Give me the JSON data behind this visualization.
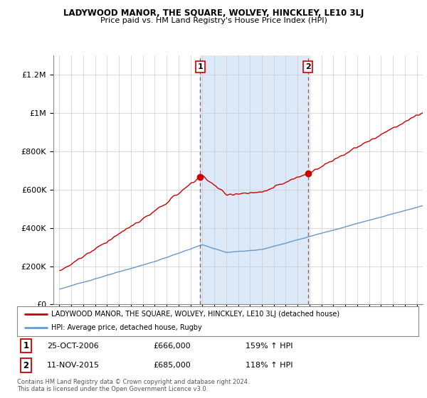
{
  "title": "LADYWOOD MANOR, THE SQUARE, WOLVEY, HINCKLEY, LE10 3LJ",
  "subtitle": "Price paid vs. HM Land Registry's House Price Index (HPI)",
  "legend_line1": "LADYWOOD MANOR, THE SQUARE, WOLVEY, HINCKLEY, LE10 3LJ (detached house)",
  "legend_line2": "HPI: Average price, detached house, Rugby",
  "sale1_date": "25-OCT-2006",
  "sale1_price": "£666,000",
  "sale1_hpi": "159% ↑ HPI",
  "sale2_date": "11-NOV-2015",
  "sale2_price": "£685,000",
  "sale2_hpi": "118% ↑ HPI",
  "footer1": "Contains HM Land Registry data © Crown copyright and database right 2024.",
  "footer2": "This data is licensed under the Open Government Licence v3.0.",
  "red_color": "#cc0000",
  "blue_color": "#6699cc",
  "shade_color": "#dce9f8",
  "plot_bg": "#ffffff",
  "sale1_x": 2006.82,
  "sale2_x": 2015.87,
  "sale1_price_val": 666000,
  "sale2_price_val": 685000,
  "ylim_max": 1300000,
  "xlim_min": 1994.5,
  "xlim_max": 2025.5
}
